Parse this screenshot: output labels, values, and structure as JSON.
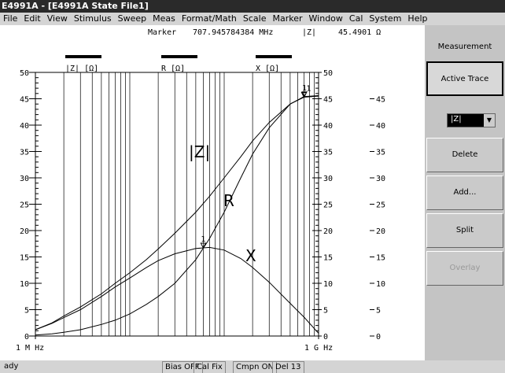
{
  "window_title": "E4991A - [E4991A State File1]",
  "menu": [
    "File",
    "Edit",
    "View",
    "Stimulus",
    "Sweep",
    "Meas",
    "Format/Math",
    "Scale",
    "Marker",
    "Window",
    "Cal",
    "System",
    "Help"
  ],
  "marker_readout": {
    "label": "Marker",
    "stimulus": "707.945784384 MHz",
    "parameter": "|Z|",
    "value": "45.4901 Ω"
  },
  "chart_data": {
    "type": "line",
    "x": [
      1,
      1.5,
      2,
      3,
      5,
      7,
      10,
      15,
      20,
      30,
      50,
      70,
      100,
      150,
      200,
      300,
      500,
      700,
      1000
    ],
    "series": [
      {
        "name": "|Z|",
        "unit_label": "|Z|  [Ω]",
        "color": "#000000",
        "values": [
          1.2,
          2.5,
          3.8,
          5.5,
          8,
          10,
          12,
          14.5,
          16.5,
          19.5,
          23.5,
          26.5,
          30,
          34,
          37,
          40.5,
          44,
          45.4,
          45.6
        ]
      },
      {
        "name": "R",
        "unit_label": "R  [Ω]",
        "color": "#000000",
        "values": [
          0.2,
          0.4,
          0.7,
          1.2,
          2.2,
          3,
          4.2,
          6,
          7.5,
          10,
          14.5,
          18.5,
          23.5,
          30,
          34.5,
          39.5,
          44,
          45.3,
          45.5
        ]
      },
      {
        "name": "X",
        "unit_label": "X  [Ω]",
        "color": "#000000",
        "values": [
          1.2,
          2.4,
          3.5,
          5,
          7.5,
          9.3,
          11,
          13,
          14.3,
          15.6,
          16.6,
          16.8,
          16.3,
          14.7,
          13,
          10.2,
          6.2,
          3.6,
          0.5
        ]
      }
    ],
    "markers": [
      {
        "label": "1",
        "series": 0,
        "x": 707.945784384
      },
      {
        "label": "1",
        "series": 1,
        "x": 700
      },
      {
        "label": "1",
        "series": 2,
        "x": 60
      }
    ],
    "xlog": true,
    "xlim": [
      1,
      1000
    ],
    "xticks": [
      {
        "value": 1,
        "label": "1 M Hz"
      },
      {
        "value": 1000,
        "label": "1 G Hz"
      }
    ],
    "xgrid": [
      2,
      3,
      4,
      5,
      6,
      7,
      8,
      9,
      10,
      20,
      30,
      40,
      50,
      60,
      70,
      80,
      90,
      100,
      200,
      300,
      400,
      500,
      600,
      700,
      800,
      900
    ],
    "ylim": [
      0,
      50
    ],
    "yticks": [
      0,
      5,
      10,
      15,
      20,
      25,
      30,
      35,
      40,
      45,
      50
    ],
    "y2ticks": [
      0,
      5,
      10,
      15,
      20,
      25,
      30,
      35,
      40,
      45,
      50
    ],
    "y3ticks": [
      0,
      5,
      10,
      15,
      20,
      25,
      30,
      35,
      40,
      45
    ]
  },
  "softkeys": {
    "header": "Measurement",
    "active": "Active Trace",
    "dropdown": "|Z|",
    "keys": [
      "Delete",
      "Add...",
      "Split"
    ],
    "disabled": "Overlay"
  },
  "status": [
    "ady",
    "Bias OFF",
    "Cal Fix",
    "Cmpn ON",
    "Del 13"
  ]
}
